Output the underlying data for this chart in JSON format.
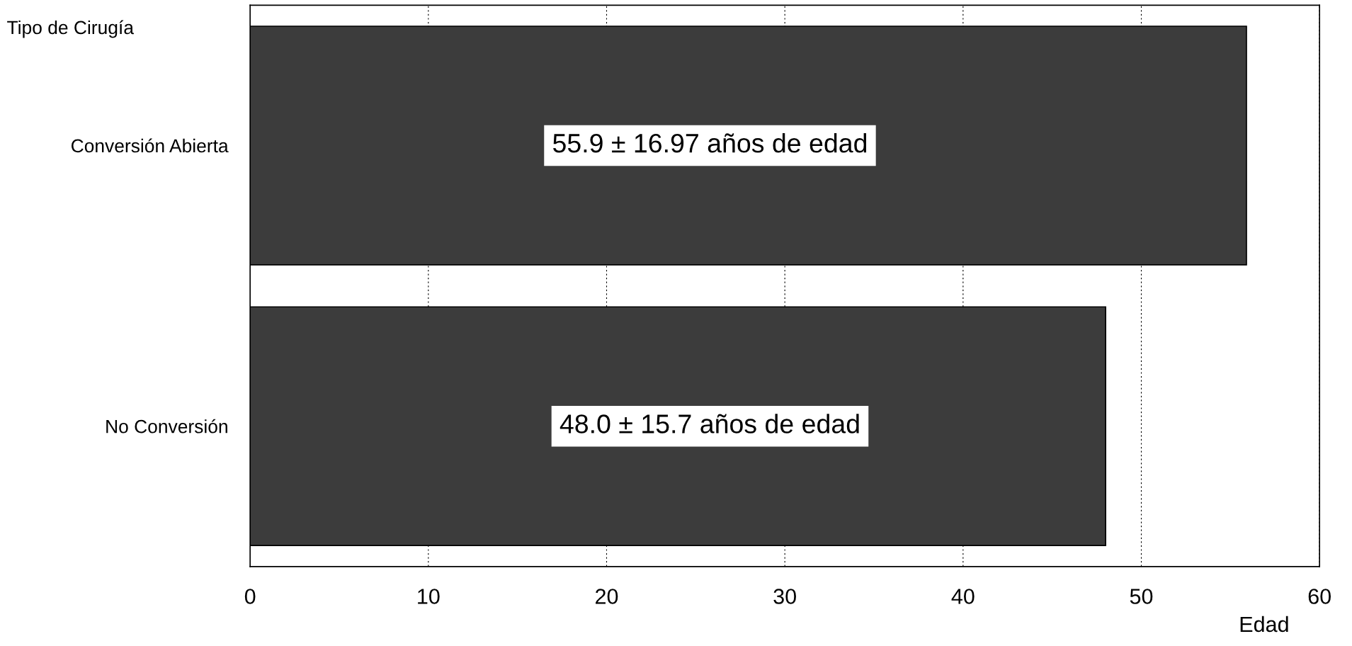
{
  "chart_data": {
    "type": "bar",
    "orientation": "horizontal",
    "ylabel": "Tipo de Cirugía",
    "xlabel": "Edad",
    "categories": [
      "Conversión Abierta",
      "No Conversión"
    ],
    "values": [
      55.9,
      48.0
    ],
    "value_labels": [
      "55.9 ± 16.97 años de edad",
      "48.0 ± 15.7 años de edad"
    ],
    "color": "#3c3c3c",
    "xlim": [
      0,
      60
    ],
    "xticks": [
      0,
      10,
      20,
      30,
      40,
      50,
      60
    ],
    "grid": "x"
  }
}
